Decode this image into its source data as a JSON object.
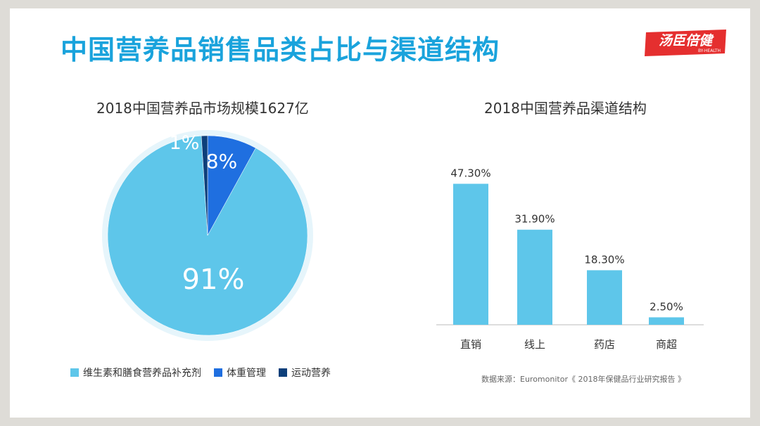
{
  "page_title": "中国营养品销售品类占比与渠道结构",
  "logo": {
    "brand_text": "汤臣倍健",
    "brand_sub": "BY-HEALTH"
  },
  "source_text": "数据来源：Euromonitor《 2018年保健品行业研究报告 》",
  "colors": {
    "title": "#1aa3dc",
    "light_blue": "#5ec6ea",
    "medium_blue": "#1f6fe0",
    "dark_blue": "#0d3f7a",
    "bar": "#5ec6ea",
    "logo_red": "#e52f2f"
  },
  "chart_data": [
    {
      "type": "pie",
      "title": "2018中国营养品市场规模1627亿",
      "slices": [
        {
          "name": "维生素和膳食营养品补充剂",
          "value": 91,
          "label": "91%",
          "color": "#5ec6ea"
        },
        {
          "name": "体重管理",
          "value": 8,
          "label": "8%",
          "color": "#1f6fe0"
        },
        {
          "name": "运动营养",
          "value": 1,
          "label": "1%",
          "color": "#0d3f7a"
        }
      ],
      "legend_position": "bottom"
    },
    {
      "type": "bar",
      "title": "2018中国营养品渠道结构",
      "categories": [
        "直销",
        "线上",
        "药店",
        "商超"
      ],
      "values": [
        47.3,
        31.9,
        18.3,
        2.5
      ],
      "value_labels": [
        "47.30%",
        "31.90%",
        "18.30%",
        "2.50%"
      ],
      "ylim": [
        0,
        50
      ],
      "grid": false
    }
  ]
}
